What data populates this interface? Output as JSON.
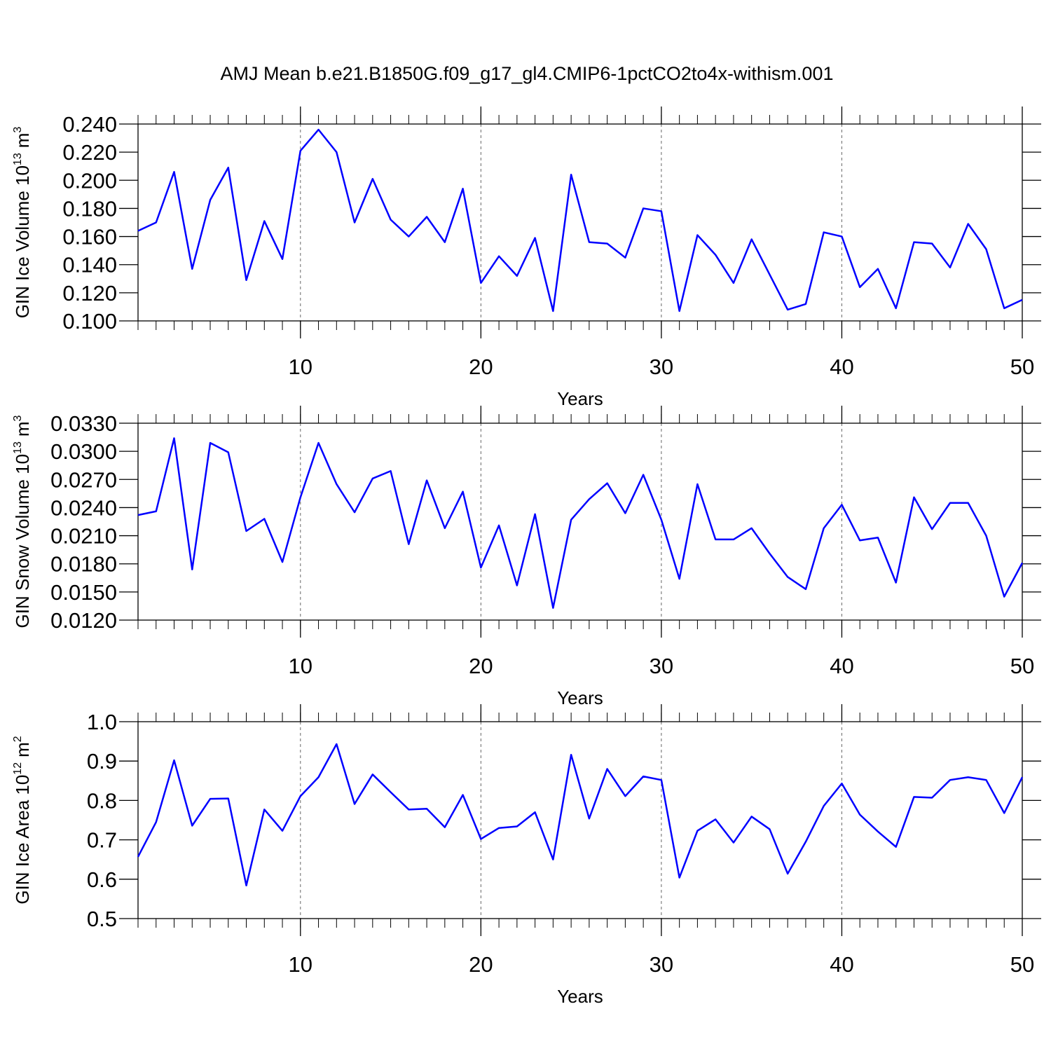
{
  "chart_data": [
    {
      "type": "line",
      "title": "AMJ Mean b.e21.B1850G.f09_g17_gl4.CMIP6-1pctCO2to4x-withism.001",
      "ylabel": {
        "text": "GIN Ice Volume 10",
        "exponent": "13",
        "unit": "m",
        "unit_exponent": "3"
      },
      "xlabel": "Years",
      "x": [
        1,
        2,
        3,
        4,
        5,
        6,
        7,
        8,
        9,
        10,
        11,
        12,
        13,
        14,
        15,
        16,
        17,
        18,
        19,
        20,
        21,
        22,
        23,
        24,
        25,
        26,
        27,
        28,
        29,
        30,
        31,
        32,
        33,
        34,
        35,
        36,
        37,
        38,
        39,
        40,
        41,
        42,
        43,
        44,
        45,
        46,
        47,
        48,
        49,
        50
      ],
      "series": [
        {
          "color": "#0000ff",
          "values": [
            0.164,
            0.17,
            0.206,
            0.137,
            0.186,
            0.209,
            0.129,
            0.171,
            0.144,
            0.221,
            0.236,
            0.22,
            0.17,
            0.201,
            0.172,
            0.16,
            0.174,
            0.156,
            0.194,
            0.127,
            0.146,
            0.132,
            0.159,
            0.107,
            0.204,
            0.156,
            0.155,
            0.145,
            0.18,
            0.178,
            0.107,
            0.161,
            0.147,
            0.127,
            0.158,
            0.133,
            0.108,
            0.112,
            0.163,
            0.16,
            0.124,
            0.137,
            0.109,
            0.156,
            0.155,
            0.138,
            0.169,
            0.151,
            0.109,
            0.115
          ]
        }
      ],
      "xlim": [
        1,
        50
      ],
      "xticks": [
        10,
        20,
        30,
        40,
        50
      ],
      "xminorticks": [
        1,
        2,
        3,
        4,
        5,
        6,
        7,
        8,
        9,
        10,
        11,
        12,
        13,
        14,
        15,
        16,
        17,
        18,
        19,
        20,
        21,
        22,
        23,
        24,
        25,
        26,
        27,
        28,
        29,
        30,
        31,
        32,
        33,
        34,
        35,
        36,
        37,
        38,
        39,
        40,
        41,
        42,
        43,
        44,
        45,
        46,
        47,
        48,
        49,
        50
      ],
      "ylim": [
        0.1,
        0.24
      ],
      "yticks": [
        {
          "value": 0.1,
          "label": "0.100"
        },
        {
          "value": 0.12,
          "label": "0.120"
        },
        {
          "value": 0.14,
          "label": "0.140"
        },
        {
          "value": 0.16,
          "label": "0.160"
        },
        {
          "value": 0.18,
          "label": "0.180"
        },
        {
          "value": 0.2,
          "label": "0.200"
        },
        {
          "value": 0.22,
          "label": "0.220"
        },
        {
          "value": 0.24,
          "label": "0.240"
        }
      ],
      "xgrid": true
    },
    {
      "type": "line",
      "ylabel": {
        "text": "GIN Snow Volume 10",
        "exponent": "13",
        "unit": "m",
        "unit_exponent": "3"
      },
      "xlabel": "Years",
      "x": [
        1,
        2,
        3,
        4,
        5,
        6,
        7,
        8,
        9,
        10,
        11,
        12,
        13,
        14,
        15,
        16,
        17,
        18,
        19,
        20,
        21,
        22,
        23,
        24,
        25,
        26,
        27,
        28,
        29,
        30,
        31,
        32,
        33,
        34,
        35,
        36,
        37,
        38,
        39,
        40,
        41,
        42,
        43,
        44,
        45,
        46,
        47,
        48,
        49,
        50
      ],
      "series": [
        {
          "color": "#0000ff",
          "values": [
            0.0232,
            0.0236,
            0.0314,
            0.0174,
            0.0309,
            0.0299,
            0.0215,
            0.0228,
            0.0182,
            0.0251,
            0.0309,
            0.0265,
            0.0235,
            0.0271,
            0.0279,
            0.0201,
            0.0269,
            0.0218,
            0.0257,
            0.0176,
            0.0221,
            0.0157,
            0.0233,
            0.0133,
            0.0227,
            0.0249,
            0.0266,
            0.0234,
            0.0275,
            0.0227,
            0.0164,
            0.0265,
            0.0206,
            0.0206,
            0.0218,
            0.0191,
            0.0166,
            0.0153,
            0.0218,
            0.0243,
            0.0205,
            0.0208,
            0.016,
            0.0251,
            0.0217,
            0.0245,
            0.0245,
            0.021,
            0.0145,
            0.0181
          ]
        }
      ],
      "xlim": [
        1,
        50
      ],
      "xticks": [
        10,
        20,
        30,
        40,
        50
      ],
      "xminorticks": [
        1,
        2,
        3,
        4,
        5,
        6,
        7,
        8,
        9,
        10,
        11,
        12,
        13,
        14,
        15,
        16,
        17,
        18,
        19,
        20,
        21,
        22,
        23,
        24,
        25,
        26,
        27,
        28,
        29,
        30,
        31,
        32,
        33,
        34,
        35,
        36,
        37,
        38,
        39,
        40,
        41,
        42,
        43,
        44,
        45,
        46,
        47,
        48,
        49,
        50
      ],
      "ylim": [
        0.012,
        0.033
      ],
      "yticks": [
        {
          "value": 0.012,
          "label": "0.0120"
        },
        {
          "value": 0.015,
          "label": "0.0150"
        },
        {
          "value": 0.018,
          "label": "0.0180"
        },
        {
          "value": 0.021,
          "label": "0.0210"
        },
        {
          "value": 0.024,
          "label": "0.0240"
        },
        {
          "value": 0.027,
          "label": "0.0270"
        },
        {
          "value": 0.03,
          "label": "0.0300"
        },
        {
          "value": 0.033,
          "label": "0.0330"
        }
      ],
      "xgrid": true
    },
    {
      "type": "line",
      "ylabel": {
        "text": "GIN Ice Area 10",
        "exponent": "12",
        "unit": "m",
        "unit_exponent": "2"
      },
      "xlabel": "Years",
      "x": [
        1,
        2,
        3,
        4,
        5,
        6,
        7,
        8,
        9,
        10,
        11,
        12,
        13,
        14,
        15,
        16,
        17,
        18,
        19,
        20,
        21,
        22,
        23,
        24,
        25,
        26,
        27,
        28,
        29,
        30,
        31,
        32,
        33,
        34,
        35,
        36,
        37,
        38,
        39,
        40,
        41,
        42,
        43,
        44,
        45,
        46,
        47,
        48,
        49,
        50
      ],
      "series": [
        {
          "color": "#0000ff",
          "values": [
            0.657,
            0.745,
            0.902,
            0.736,
            0.804,
            0.805,
            0.584,
            0.777,
            0.723,
            0.811,
            0.859,
            0.943,
            0.791,
            0.866,
            0.821,
            0.777,
            0.779,
            0.732,
            0.814,
            0.702,
            0.73,
            0.734,
            0.77,
            0.65,
            0.916,
            0.754,
            0.88,
            0.811,
            0.861,
            0.852,
            0.604,
            0.723,
            0.752,
            0.693,
            0.759,
            0.727,
            0.614,
            0.695,
            0.786,
            0.843,
            0.764,
            0.721,
            0.682,
            0.809,
            0.807,
            0.852,
            0.859,
            0.852,
            0.768,
            0.859
          ]
        }
      ],
      "xlim": [
        1,
        50
      ],
      "xticks": [
        10,
        20,
        30,
        40,
        50
      ],
      "xminorticks": [
        1,
        2,
        3,
        4,
        5,
        6,
        7,
        8,
        9,
        10,
        11,
        12,
        13,
        14,
        15,
        16,
        17,
        18,
        19,
        20,
        21,
        22,
        23,
        24,
        25,
        26,
        27,
        28,
        29,
        30,
        31,
        32,
        33,
        34,
        35,
        36,
        37,
        38,
        39,
        40,
        41,
        42,
        43,
        44,
        45,
        46,
        47,
        48,
        49,
        50
      ],
      "ylim": [
        0.5,
        1.0
      ],
      "yticks": [
        0.5,
        0.6,
        0.7,
        0.8,
        0.9,
        {
          "value": 1.0,
          "label": "1.0"
        }
      ],
      "xgrid": true
    }
  ]
}
